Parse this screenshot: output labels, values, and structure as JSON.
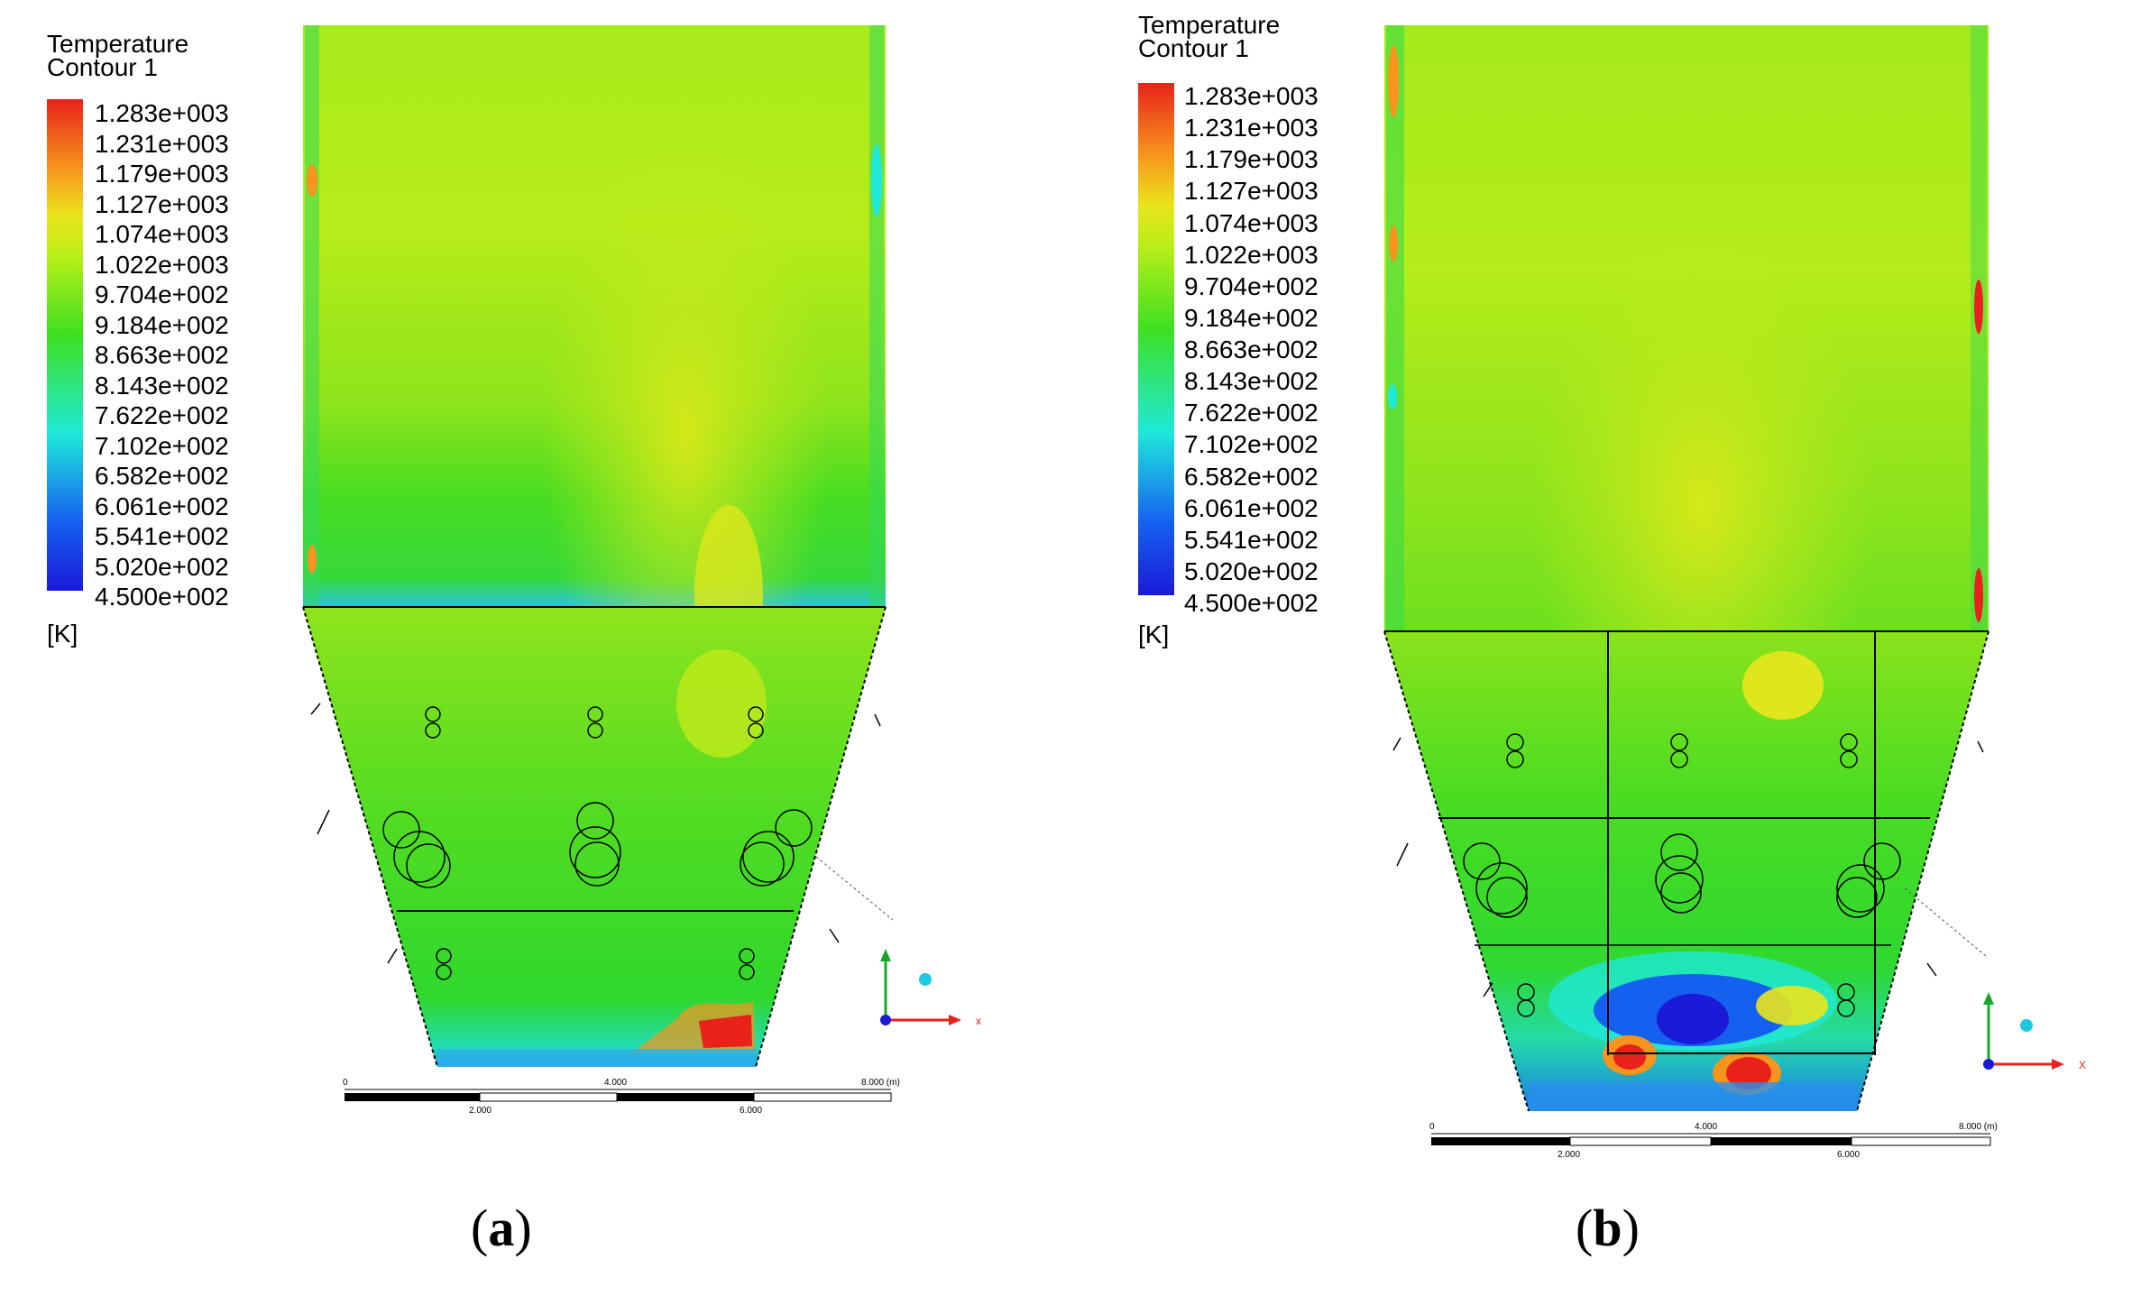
{
  "panels": [
    {
      "id": "a",
      "legend_title_line1": "Temperature",
      "legend_title_line2": "Contour 1",
      "unit": "[K]",
      "caption_letter": "a",
      "scale_top_labels": [
        "0",
        "4.000",
        "8.000 (m)"
      ],
      "scale_bottom_labels": [
        "2.000",
        "6.000"
      ],
      "axis_label_x": "x"
    },
    {
      "id": "b",
      "legend_title_line1": "Temperature",
      "legend_title_line2": "Contour 1",
      "unit": "[K]",
      "caption_letter": "b",
      "scale_top_labels": [
        "0",
        "4.000",
        "8.000 (m)"
      ],
      "scale_bottom_labels": [
        "2.000",
        "6.000"
      ],
      "axis_label_x": "X"
    }
  ],
  "legend_levels": [
    "1.283e+003",
    "1.231e+003",
    "1.179e+003",
    "1.127e+003",
    "1.074e+003",
    "1.022e+003",
    "9.704e+002",
    "9.184e+002",
    "8.663e+002",
    "8.143e+002",
    "7.622e+002",
    "7.102e+002",
    "6.582e+002",
    "6.061e+002",
    "5.541e+002",
    "5.020e+002",
    "4.500e+002"
  ],
  "colors": {
    "hot": "#e8221a",
    "orange": "#f7941d",
    "yellow": "#e9e51c",
    "yellowgreen": "#b8ee18",
    "green": "#3ee021",
    "cyan": "#1fe9d8",
    "blue": "#1660ef",
    "cold": "#1a1ad8"
  }
}
